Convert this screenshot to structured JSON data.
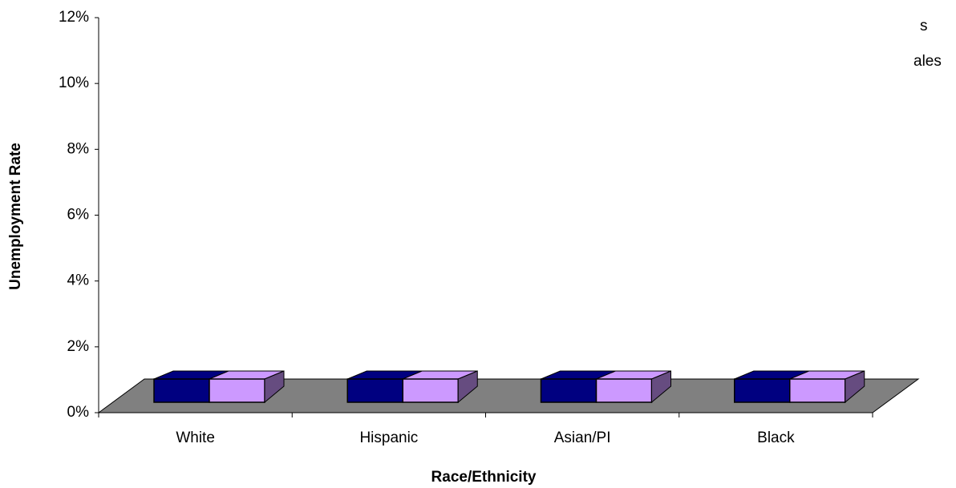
{
  "chart_data": {
    "type": "bar3d",
    "x_label": "Race/Ethnicity",
    "y_label": "Unemployment Rate",
    "categories": [
      "White",
      "Hispanic",
      "Asian/PI",
      "Black"
    ],
    "series": [
      {
        "name": "s",
        "color": "#000080",
        "values": [
          0,
          0,
          0,
          0
        ]
      },
      {
        "name": "ales",
        "color": "#cc99ff",
        "values": [
          0,
          0,
          0,
          0
        ]
      }
    ],
    "ylim": [
      0,
      12
    ],
    "yticks": [
      {
        "value": 0,
        "label": "0%"
      },
      {
        "value": 2,
        "label": "2%"
      },
      {
        "value": 4,
        "label": "4%"
      },
      {
        "value": 6,
        "label": "6%"
      },
      {
        "value": 8,
        "label": "8%"
      },
      {
        "value": 10,
        "label": "10%"
      },
      {
        "value": 12,
        "label": "12%"
      }
    ],
    "floor_color": "#808080"
  }
}
